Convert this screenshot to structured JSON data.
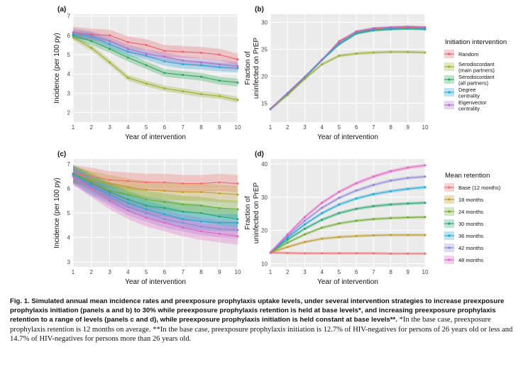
{
  "caption": {
    "figure_label": "Fig. 1.",
    "bold_text": "Simulated annual mean incidence rates and preexposure prophylaxis uptake levels, under several intervention strategies to increase preexposure prophylaxis initiation (panels a and b) to 30% while preexposure prophylaxis retention is held at base levels*, and increasing preexposure prophylaxis retention to a range of levels (panels c and d), while preexposure prophylaxis initiation is held constant at base levels**.",
    "note1": "*In the base case, preexposure prophylaxis retention is 12 months on average.",
    "note2": "**In the base case, preexposure prophylaxis initiation is 12.7% of HIV-negatives for persons of 26 years old or less and 14.7% of HIV-negatives for persons more than 26 years old."
  },
  "legends": [
    {
      "title": "Initiation intervention",
      "items": [
        {
          "label": [
            "Random"
          ],
          "color": "#e8606a"
        },
        {
          "label": [
            "Serodiscordant",
            "(main partners)"
          ],
          "color": "#9aad2c"
        },
        {
          "label": [
            "Serodiscordant",
            "(all partners)"
          ],
          "color": "#2aa657"
        },
        {
          "label": [
            "Degree",
            "centrality"
          ],
          "color": "#23a6d6"
        },
        {
          "label": [
            "Eigenvector",
            "centrality"
          ],
          "color": "#b06fc8"
        }
      ]
    },
    {
      "title": "Mean retention",
      "items": [
        {
          "label": [
            "Base (12 months)"
          ],
          "color": "#f26d6d"
        },
        {
          "label": [
            "18 months"
          ],
          "color": "#bf9b28"
        },
        {
          "label": [
            "24 months"
          ],
          "color": "#6cab2c"
        },
        {
          "label": [
            "30 months"
          ],
          "color": "#26a470"
        },
        {
          "label": [
            "36 months"
          ],
          "color": "#20a9d6"
        },
        {
          "label": [
            "42 months"
          ],
          "color": "#8f86da"
        },
        {
          "label": [
            "48 months"
          ],
          "color": "#e362c4"
        }
      ]
    }
  ],
  "chart_data": [
    {
      "panel_label": "(a)",
      "type": "line",
      "xlabel": "Year of intervention",
      "ylabel": "Incidence (per 100 py)",
      "ylabel2": "",
      "x": [
        1,
        2,
        3,
        4,
        5,
        6,
        7,
        8,
        9,
        10
      ],
      "xticks": [
        "1",
        "2",
        "3",
        "4",
        "5",
        "6",
        "7",
        "8",
        "9",
        "10"
      ],
      "xlim": [
        1,
        10
      ],
      "ylim": [
        1.5,
        7.1
      ],
      "yticks": [
        2,
        3,
        4,
        5,
        6,
        7
      ],
      "grid": true,
      "legend_position": "right",
      "series": [
        {
          "name": "Random",
          "color": "#e8606a",
          "values": [
            6.15,
            6.05,
            6.0,
            5.65,
            5.5,
            5.2,
            5.15,
            5.1,
            5.0,
            4.75
          ],
          "band": 0.3
        },
        {
          "name": "Serodiscordant (main partners)",
          "color": "#9aad2c",
          "values": [
            5.9,
            5.35,
            4.6,
            3.8,
            3.5,
            3.25,
            3.1,
            2.95,
            2.85,
            2.65
          ],
          "band": 0.15
        },
        {
          "name": "Serodiscordant (all partners)",
          "color": "#2aa657",
          "values": [
            6.0,
            5.7,
            5.3,
            4.85,
            4.45,
            4.05,
            3.95,
            3.85,
            3.65,
            3.55
          ],
          "band": 0.2
        },
        {
          "name": "Degree centrality",
          "color": "#23a6d6",
          "values": [
            6.05,
            5.95,
            5.55,
            5.15,
            4.95,
            4.65,
            4.5,
            4.45,
            4.35,
            4.3
          ],
          "band": 0.22
        },
        {
          "name": "Eigenvector centrality",
          "color": "#b06fc8",
          "values": [
            6.15,
            6.0,
            5.7,
            5.3,
            5.05,
            4.9,
            4.7,
            4.6,
            4.5,
            4.4
          ],
          "band": 0.22
        }
      ]
    },
    {
      "panel_label": "(b)",
      "type": "line",
      "xlabel": "Year of intervention",
      "ylabel": "Fraction of",
      "ylabel2": "uninfected on PrEP",
      "x": [
        1,
        2,
        3,
        4,
        5,
        6,
        7,
        8,
        9,
        10
      ],
      "xticks": [
        "1",
        "2",
        "3",
        "4",
        "5",
        "6",
        "7",
        "8",
        "9",
        "10"
      ],
      "xlim": [
        1,
        10
      ],
      "ylim": [
        11.5,
        31.5
      ],
      "yticks": [
        15,
        20,
        25,
        30
      ],
      "grid": true,
      "legend_position": "right",
      "series": [
        {
          "name": "Random",
          "color": "#e8606a",
          "values": [
            13.9,
            16.8,
            19.8,
            23.0,
            26.5,
            28.2,
            28.8,
            29.0,
            29.1,
            29.0
          ],
          "band": 0.25
        },
        {
          "name": "Serodiscordant (main partners)",
          "color": "#9aad2c",
          "values": [
            13.9,
            16.5,
            19.5,
            22.2,
            23.8,
            24.2,
            24.4,
            24.5,
            24.5,
            24.4
          ],
          "band": 0.3
        },
        {
          "name": "Serodiscordant (all partners)",
          "color": "#2aa657",
          "values": [
            13.9,
            16.8,
            19.8,
            23.0,
            25.9,
            27.9,
            28.5,
            28.7,
            28.8,
            28.7
          ],
          "band": 0.25
        },
        {
          "name": "Degree centrality",
          "color": "#23a6d6",
          "values": [
            13.9,
            16.8,
            19.8,
            23.0,
            26.0,
            28.0,
            28.6,
            28.8,
            28.9,
            28.8
          ],
          "band": 0.25
        },
        {
          "name": "Eigenvector centrality",
          "color": "#b06fc8",
          "values": [
            13.9,
            16.9,
            19.9,
            23.1,
            26.3,
            28.3,
            28.9,
            29.1,
            29.2,
            29.1
          ],
          "band": 0.25
        }
      ]
    },
    {
      "panel_label": "(c)",
      "type": "line",
      "xlabel": "Year of intervention",
      "ylabel": "Incidence (per 100 py)",
      "ylabel2": "",
      "x": [
        1,
        2,
        3,
        4,
        5,
        6,
        7,
        8,
        9,
        10
      ],
      "xticks": [
        "1",
        "2",
        "3",
        "4",
        "5",
        "6",
        "7",
        "8",
        "9",
        "10"
      ],
      "xlim": [
        1,
        10
      ],
      "ylim": [
        2.8,
        7.2
      ],
      "yticks": [
        3,
        4,
        5,
        6,
        7
      ],
      "grid": true,
      "legend_position": "right",
      "series": [
        {
          "name": "Base (12 months)",
          "color": "#f26d6d",
          "values": [
            6.6,
            6.5,
            6.35,
            6.3,
            6.25,
            6.25,
            6.2,
            6.2,
            6.25,
            6.2
          ],
          "band": 0.35
        },
        {
          "name": "18 months",
          "color": "#bf9b28",
          "values": [
            6.55,
            6.35,
            6.2,
            6.05,
            5.95,
            5.9,
            5.85,
            5.85,
            5.8,
            5.75
          ],
          "band": 0.35
        },
        {
          "name": "24 months",
          "color": "#6cab2c",
          "values": [
            6.6,
            6.3,
            5.9,
            5.75,
            5.55,
            5.45,
            5.35,
            5.3,
            5.2,
            5.15
          ],
          "band": 0.35
        },
        {
          "name": "30 months",
          "color": "#26a470",
          "values": [
            6.6,
            6.2,
            5.85,
            5.55,
            5.3,
            5.2,
            5.05,
            5.0,
            4.85,
            4.75
          ],
          "band": 0.35
        },
        {
          "name": "36 months",
          "color": "#20a9d6",
          "values": [
            6.55,
            6.1,
            5.75,
            5.4,
            5.15,
            4.95,
            4.75,
            4.65,
            4.6,
            4.6
          ],
          "band": 0.35
        },
        {
          "name": "42 months",
          "color": "#8f86da",
          "values": [
            6.5,
            6.05,
            5.65,
            5.25,
            5.0,
            4.75,
            4.6,
            4.45,
            4.35,
            4.3
          ],
          "band": 0.35
        },
        {
          "name": "48 months",
          "color": "#e362c4",
          "values": [
            6.5,
            6.0,
            5.5,
            5.1,
            4.8,
            4.6,
            4.4,
            4.25,
            4.15,
            4.05
          ],
          "band": 0.35
        }
      ]
    },
    {
      "panel_label": "(d)",
      "type": "line",
      "xlabel": "Year of intervention",
      "ylabel": "Fraction of",
      "ylabel2": "uninfected on PrEP",
      "x": [
        1,
        2,
        3,
        4,
        5,
        6,
        7,
        8,
        9,
        10
      ],
      "xticks": [
        "1",
        "2",
        "3",
        "4",
        "5",
        "6",
        "7",
        "8",
        "9",
        "10"
      ],
      "xlim": [
        1,
        10
      ],
      "ylim": [
        9,
        41.5
      ],
      "yticks": [
        10,
        20,
        30,
        40
      ],
      "grid": true,
      "legend_position": "right",
      "series": [
        {
          "name": "Base (12 months)",
          "color": "#f26d6d",
          "values": [
            13.3,
            13.2,
            13.1,
            13.1,
            13.1,
            13.1,
            13.1,
            13.0,
            13.0,
            13.0
          ],
          "band": 0.4
        },
        {
          "name": "18 months",
          "color": "#bf9b28",
          "values": [
            13.3,
            15.0,
            16.5,
            17.5,
            18.0,
            18.3,
            18.5,
            18.6,
            18.6,
            18.6
          ],
          "band": 0.45
        },
        {
          "name": "24 months",
          "color": "#6cab2c",
          "values": [
            13.3,
            16.3,
            18.8,
            20.8,
            22.1,
            22.9,
            23.4,
            23.7,
            23.9,
            24.0
          ],
          "band": 0.45
        },
        {
          "name": "30 months",
          "color": "#26a470",
          "values": [
            13.3,
            17.2,
            20.5,
            23.2,
            25.2,
            26.5,
            27.3,
            27.8,
            28.1,
            28.3
          ],
          "band": 0.5
        },
        {
          "name": "36 months",
          "color": "#20a9d6",
          "values": [
            13.3,
            17.8,
            21.8,
            25.2,
            27.8,
            29.6,
            30.9,
            31.8,
            32.5,
            33.0
          ],
          "band": 0.5
        },
        {
          "name": "42 months",
          "color": "#8f86da",
          "values": [
            13.3,
            18.3,
            22.9,
            26.8,
            29.8,
            32.0,
            33.7,
            35.0,
            35.8,
            36.2
          ],
          "band": 0.5
        },
        {
          "name": "48 months",
          "color": "#e362c4",
          "values": [
            13.3,
            18.8,
            24.0,
            28.3,
            31.6,
            34.2,
            36.2,
            37.8,
            38.9,
            39.6
          ],
          "band": 0.55
        }
      ]
    }
  ]
}
